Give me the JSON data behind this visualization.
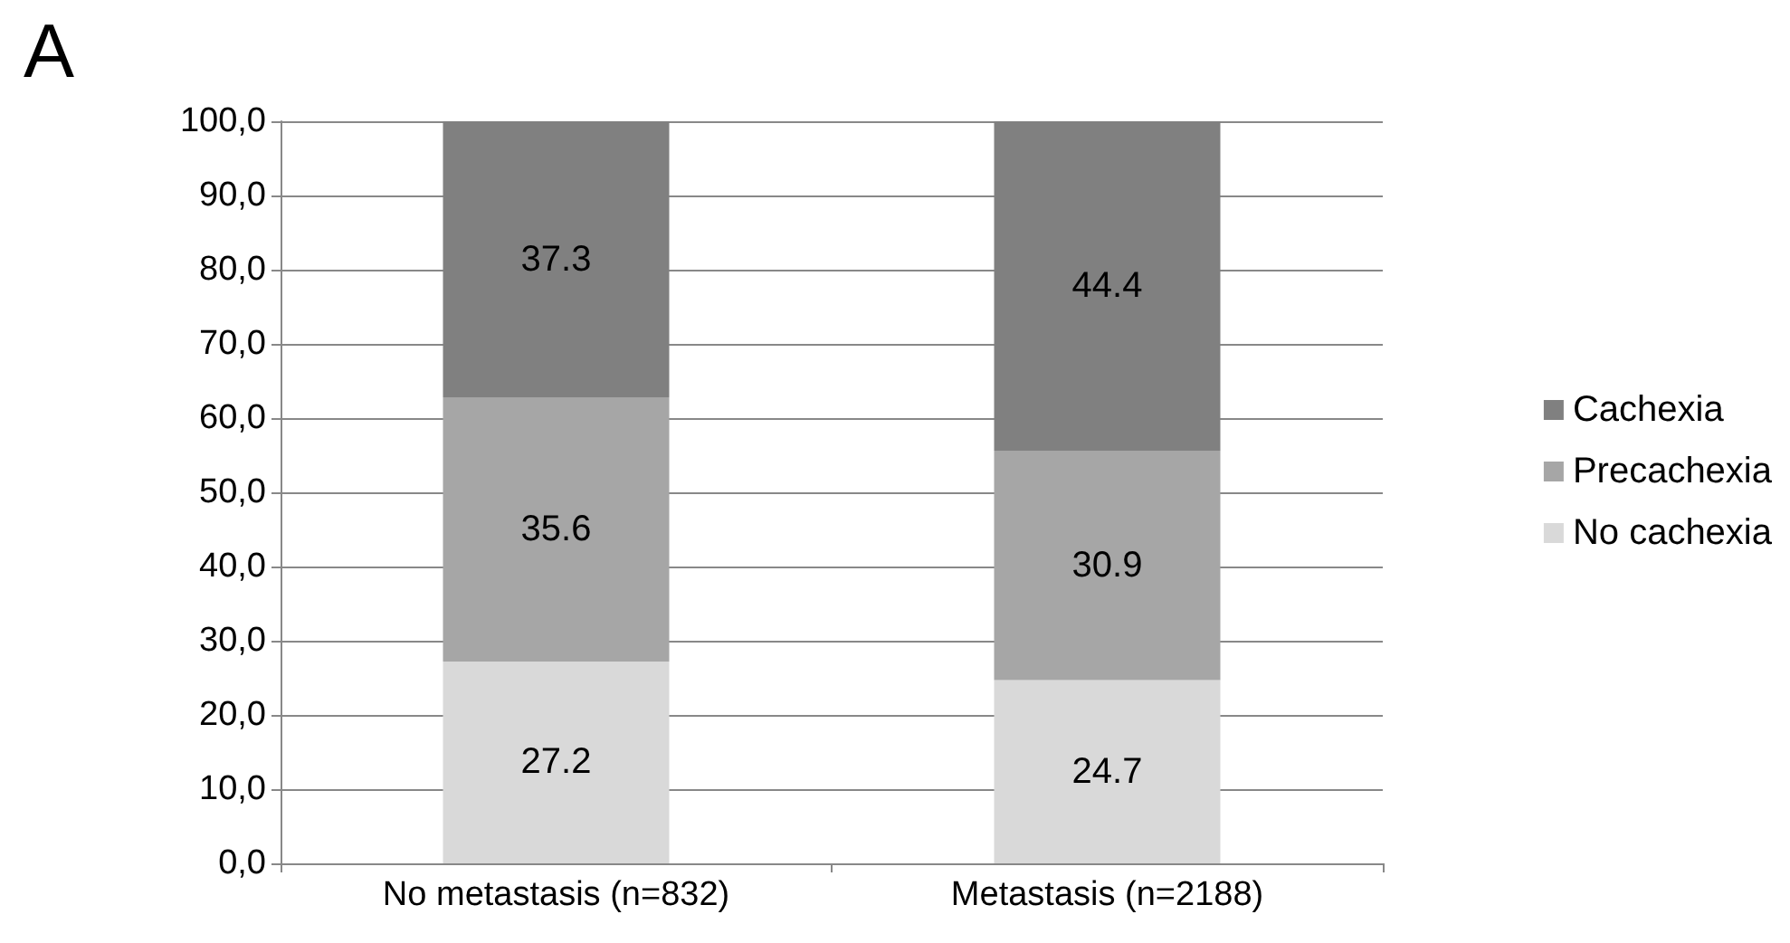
{
  "chart_data": {
    "type": "bar",
    "title": "A",
    "categories": [
      "No metastasis (n=832)",
      "Metastasis (n=2188)"
    ],
    "stacked": true,
    "series": [
      {
        "name": "No cachexia",
        "color": "#d9d9d9",
        "values": [
          27.2,
          24.7
        ]
      },
      {
        "name": "Precachexia",
        "color": "#a6a6a6",
        "values": [
          35.6,
          30.9
        ]
      },
      {
        "name": "Cachexia",
        "color": "#808080",
        "values": [
          37.3,
          44.4
        ]
      }
    ],
    "ylim": [
      0,
      100
    ],
    "yticks": [
      {
        "value": 0,
        "label": "0,0"
      },
      {
        "value": 10,
        "label": "10,0"
      },
      {
        "value": 20,
        "label": "20,0"
      },
      {
        "value": 30,
        "label": "30,0"
      },
      {
        "value": 40,
        "label": "40,0"
      },
      {
        "value": 50,
        "label": "50,0"
      },
      {
        "value": 60,
        "label": "60,0"
      },
      {
        "value": 70,
        "label": "70,0"
      },
      {
        "value": 80,
        "label": "80,0"
      },
      {
        "value": 90,
        "label": "90,0"
      },
      {
        "value": 100,
        "label": "100,0"
      }
    ],
    "grid": "y",
    "legend": "right",
    "data_labels": true
  }
}
